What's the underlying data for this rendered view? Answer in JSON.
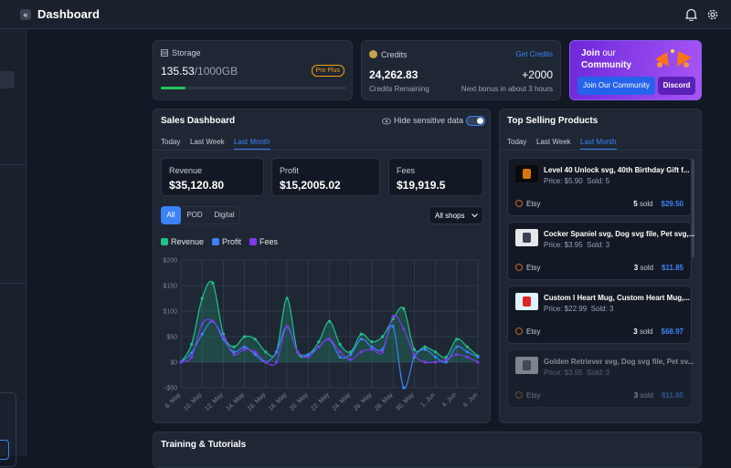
{
  "header": {
    "title": "Dashboard"
  },
  "storage": {
    "title": "Storage",
    "used": "135.53",
    "total": "/1000GB",
    "plan": "Pro Plus"
  },
  "credits": {
    "title": "Credits",
    "link": "Get Credits",
    "amount": "24,262.83",
    "amount_label": "Credits Remaining",
    "bonus": "+2000",
    "bonus_label": "Next bonus in about 3 hours"
  },
  "community": {
    "title_strong": "Join",
    "title_mid": "our",
    "title_end": "Community",
    "join_button": "Join Our Community",
    "discord_button": "Discord"
  },
  "sales": {
    "title": "Sales Dashboard",
    "toggle_label": "Hide sensitive data",
    "tabs": [
      "Today",
      "Last Week",
      "Last Month"
    ],
    "stats": [
      {
        "label": "Revenue",
        "value": "$35,120.80"
      },
      {
        "label": "Profit",
        "value": "$15,2005.02"
      },
      {
        "label": "Fees",
        "value": "$19,919.5"
      }
    ],
    "filters": [
      "All",
      "POD",
      "Digital"
    ],
    "shop_select": "All shops"
  },
  "chart_data": {
    "type": "line",
    "categories": [
      "8. May",
      null,
      "10. May",
      null,
      "12. May",
      null,
      "14. May",
      null,
      "16. May",
      null,
      "18. May",
      null,
      "20. May",
      null,
      "22. May",
      null,
      "24. May",
      null,
      "26. May",
      null,
      "28. May",
      null,
      "30. May",
      null,
      "1. Jun",
      null,
      "4. Jun",
      null,
      "6. Jun"
    ],
    "series": [
      {
        "name": "Revenue",
        "color": "#22c08a",
        "values": [
          0,
          35,
          125,
          155,
          55,
          30,
          50,
          45,
          20,
          20,
          125,
          20,
          15,
          40,
          80,
          35,
          20,
          55,
          40,
          50,
          85,
          105,
          25,
          30,
          20,
          10,
          45,
          30,
          12
        ]
      },
      {
        "name": "Profit",
        "color": "#3b82f6",
        "values": [
          0,
          18,
          55,
          80,
          45,
          20,
          30,
          15,
          0,
          20,
          70,
          20,
          15,
          30,
          45,
          10,
          15,
          45,
          30,
          25,
          70,
          -50,
          10,
          25,
          10,
          0,
          30,
          20,
          10
        ]
      },
      {
        "name": "Fees",
        "color": "#7c3aed",
        "values": [
          0,
          10,
          75,
          80,
          50,
          15,
          25,
          20,
          0,
          0,
          70,
          20,
          10,
          30,
          45,
          20,
          5,
          20,
          25,
          20,
          90,
          65,
          15,
          0,
          0,
          5,
          15,
          10,
          0
        ]
      }
    ],
    "ylim": [
      -50,
      200
    ],
    "yticks": [
      {
        "value": 200,
        "label": "$200"
      },
      {
        "value": 150,
        "label": "$150"
      },
      {
        "value": 100,
        "label": "$100"
      },
      {
        "value": 50,
        "label": "$50"
      },
      {
        "value": 0,
        "label": "$0"
      },
      {
        "value": -50,
        "label": "−$50"
      }
    ],
    "grid": true,
    "area_series": "Revenue"
  },
  "top_products": {
    "title": "Top Selling Products",
    "tabs": [
      "Today",
      "Last Week",
      "Last Month"
    ],
    "items": [
      {
        "title": "Level 40 Unlock svg, 40th Birthday Gift f...",
        "price": "Price: $5.90",
        "sold": "Sold: 5",
        "shop": "Etsy",
        "units": "5",
        "units_label": "sold",
        "total": "$29.50"
      },
      {
        "title": "Cocker Spaniel svg, Dog svg file, Pet svg,...",
        "price": "Price: $3.95",
        "sold": "Sold: 3",
        "shop": "Etsy",
        "units": "3",
        "units_label": "sold",
        "total": "$11.85"
      },
      {
        "title": "Custom I Heart Mug, Custom Heart Mug,...",
        "price": "Price: $22.99",
        "sold": "Sold: 3",
        "shop": "Etsy",
        "units": "3",
        "units_label": "sold",
        "total": "$68.97"
      },
      {
        "title": "Golden Retriever svg, Dog svg file, Pet sv...",
        "price": "Price: $3.95",
        "sold": "Sold: 3",
        "shop": "Etsy",
        "units": "3",
        "units_label": "sold",
        "total": "$11.85"
      }
    ]
  },
  "training": {
    "title": "Training & Tutorials"
  }
}
